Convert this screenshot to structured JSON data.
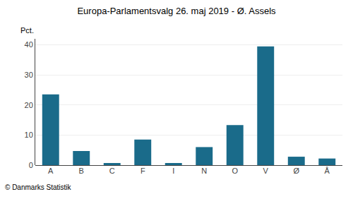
{
  "chart_data": {
    "type": "bar",
    "title": "Europa-Parlamentsvalg 26. maj 2019 - Ø. Assels",
    "categories": [
      "A",
      "B",
      "C",
      "F",
      "I",
      "N",
      "O",
      "V",
      "Ø",
      "Å"
    ],
    "values": [
      23.5,
      4.7,
      0.7,
      8.5,
      0.7,
      6.0,
      13.3,
      39.5,
      2.8,
      2.2
    ],
    "color": "#1a6b8a",
    "ylabel": "Pct.",
    "annotations": [
      "© Danmarks Statistik"
    ],
    "ylim": [
      0,
      42
    ],
    "yticks": [
      0,
      10,
      20,
      30,
      40
    ],
    "grid": true
  }
}
